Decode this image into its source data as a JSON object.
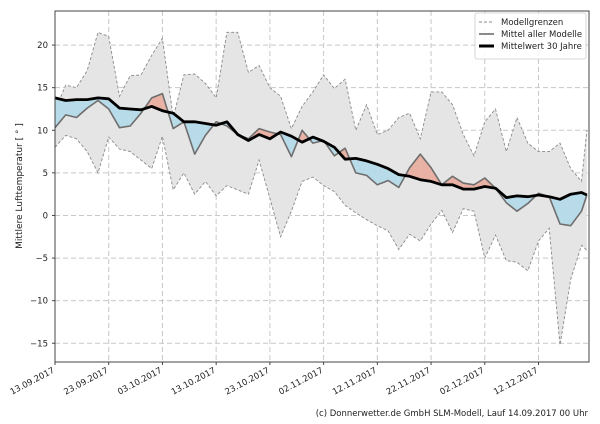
{
  "chart_data": {
    "type": "line",
    "ylabel": "Mittlere Lufttemperatur [ ° ]",
    "xlabel": "",
    "ylim": [
      -17.2,
      24
    ],
    "xlim": [
      "2017-09-13",
      "2017-12-21"
    ],
    "grid": true,
    "legend_position": "top-right",
    "yticks": [
      -15,
      -10,
      -5,
      0,
      5,
      10,
      15,
      20
    ],
    "xticks": [
      "2017-09-13",
      "2017-09-23",
      "2017-10-03",
      "2017-10-13",
      "2017-10-23",
      "2017-11-02",
      "2017-11-12",
      "2017-11-22",
      "2017-12-02",
      "2017-12-12"
    ],
    "xtick_labels": [
      "13.09.2017",
      "23.09.2017",
      "03.10.2017",
      "13.10.2017",
      "23.10.2017",
      "02.11.2017",
      "12.11.2017",
      "22.11.2017",
      "02.12.2017",
      "12.12.2017"
    ],
    "x": [
      "2017-09-13",
      "2017-09-15",
      "2017-09-17",
      "2017-09-19",
      "2017-09-21",
      "2017-09-23",
      "2017-09-25",
      "2017-09-27",
      "2017-09-29",
      "2017-10-01",
      "2017-10-03",
      "2017-10-05",
      "2017-10-07",
      "2017-10-09",
      "2017-10-11",
      "2017-10-13",
      "2017-10-15",
      "2017-10-17",
      "2017-10-19",
      "2017-10-21",
      "2017-10-23",
      "2017-10-25",
      "2017-10-27",
      "2017-10-29",
      "2017-10-31",
      "2017-11-02",
      "2017-11-04",
      "2017-11-06",
      "2017-11-08",
      "2017-11-10",
      "2017-11-12",
      "2017-11-14",
      "2017-11-16",
      "2017-11-18",
      "2017-11-20",
      "2017-11-22",
      "2017-11-24",
      "2017-11-26",
      "2017-11-28",
      "2017-11-30",
      "2017-12-02",
      "2017-12-04",
      "2017-12-06",
      "2017-12-08",
      "2017-12-10",
      "2017-12-12",
      "2017-12-14",
      "2017-12-16",
      "2017-12-18",
      "2017-12-20",
      "2017-12-21"
    ],
    "series": [
      {
        "name": "Modellgrenzen",
        "role": "upper",
        "values": [
          12.3,
          15.3,
          15,
          17,
          21.5,
          21,
          14,
          16.4,
          16.5,
          18.8,
          20.8,
          11.5,
          16.5,
          16.6,
          15.5,
          13.8,
          21.5,
          21.5,
          16.8,
          17.6,
          15,
          14,
          10.2,
          12.8,
          14.5,
          16.5,
          14.9,
          16,
          10,
          13,
          9.5,
          10,
          11.5,
          12,
          9,
          14.5,
          14.5,
          13,
          9.5,
          7,
          11,
          12.5,
          7.5,
          11.5,
          8.5,
          7.5,
          7.5,
          8.5,
          5.5,
          4,
          10
        ]
      },
      {
        "name": "Modellgrenzen",
        "role": "lower",
        "values": [
          8,
          9.4,
          9,
          7.5,
          5,
          9.2,
          7.8,
          7.5,
          6.5,
          5.5,
          9.3,
          3,
          5,
          2.5,
          4,
          2.3,
          3.5,
          3,
          2.5,
          6.5,
          2,
          -2.5,
          0.5,
          4,
          4.5,
          3.5,
          2.8,
          1.2,
          0.3,
          -0.5,
          -1.2,
          -1.8,
          -4,
          -2.2,
          -3,
          -1,
          0.6,
          -2,
          0.8,
          0.5,
          -5,
          -2.3,
          -5.3,
          -5.5,
          -6.5,
          -3,
          -1.5,
          -15.2,
          -7.5,
          -3.5,
          -4.1
        ]
      },
      {
        "name": "Mittel aller Modelle",
        "values": [
          10.3,
          11.8,
          11.5,
          12.6,
          13.5,
          12.5,
          10.3,
          10.5,
          12,
          13.8,
          14.3,
          10.2,
          11,
          7.2,
          9.4,
          11,
          10.5,
          9.5,
          9,
          10.2,
          9.8,
          9.5,
          6.9,
          10,
          8.5,
          8.8,
          7,
          7.9,
          5,
          4.7,
          3.6,
          4.1,
          3.3,
          5.6,
          7.2,
          5.6,
          3.6,
          4.6,
          3.8,
          3.6,
          4.4,
          3.2,
          1.5,
          0.5,
          1.4,
          2.6,
          2.2,
          -1,
          -1.2,
          0.5,
          2.4
        ]
      },
      {
        "name": "Mittelwert 30 Jahre",
        "values": [
          13.8,
          13.5,
          13.6,
          13.6,
          13.8,
          13.7,
          12.6,
          12.5,
          12.4,
          12.8,
          12.3,
          12,
          11,
          11,
          10.8,
          10.6,
          11,
          9.5,
          8.8,
          9.5,
          9,
          9.8,
          9.3,
          8.6,
          9.2,
          8.7,
          8,
          6.6,
          6.7,
          6.4,
          6,
          5.5,
          4.8,
          4.6,
          4.2,
          4,
          3.6,
          3.6,
          3.1,
          3.1,
          3.4,
          3.2,
          2.1,
          2.3,
          2.2,
          2.4,
          2.2,
          1.9,
          2.5,
          2.7,
          2.4
        ]
      }
    ],
    "colors": {
      "band_fill": "#e5e5e5",
      "band_edge": "#8a8a8a",
      "model_mean": "#6e6e6e",
      "climate_mean": "#000000",
      "above_fill": "#e8b1a3",
      "below_fill": "#b8dbe9"
    },
    "legend": [
      "Modellgrenzen",
      "Mittel aller Modelle",
      "Mittelwert 30 Jahre"
    ]
  },
  "footer": "(c) Donnerwetter.de GmbH SLM-Modell, Lauf 14.09.2017 00 Uhr"
}
